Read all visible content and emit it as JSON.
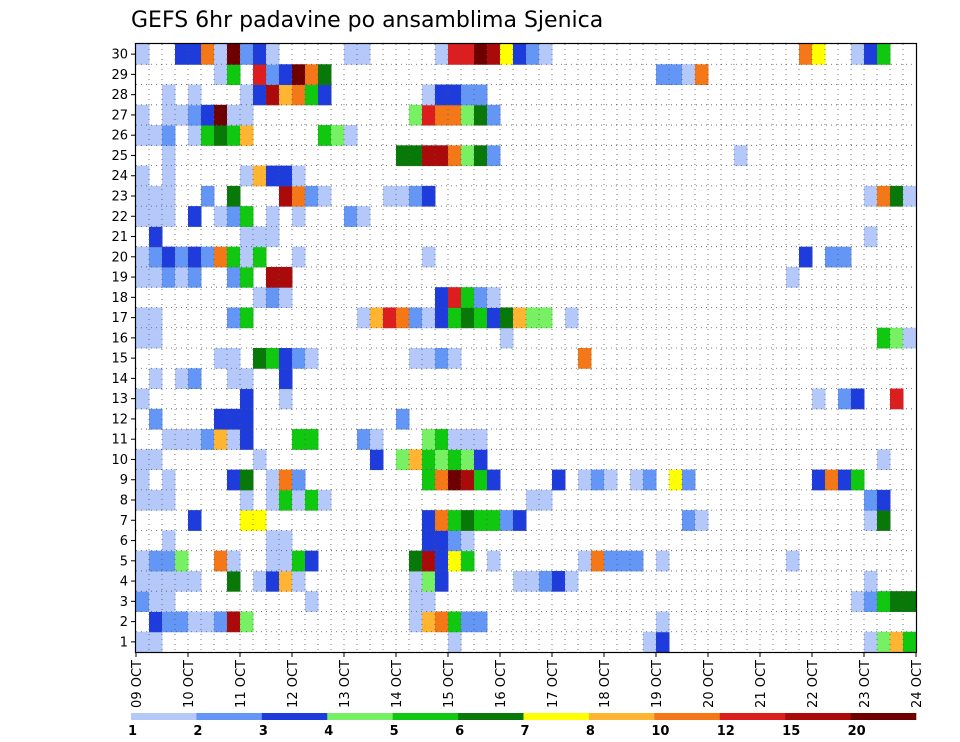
{
  "chart_data": {
    "type": "heatmap",
    "title": "GEFS 6hr padavine po ansamblima Sjenica",
    "xlabel": "",
    "ylabel": "",
    "x_ticks": [
      "09 OCT",
      "10 OCT",
      "11 OCT",
      "12 OCT",
      "13 OCT",
      "14 OCT",
      "15 OCT",
      "16 OCT",
      "17 OCT",
      "18 OCT",
      "19 OCT",
      "20 OCT",
      "21 OCT",
      "22 OCT",
      "23 OCT",
      "24 OCT"
    ],
    "y_ticks": [
      "1",
      "2",
      "3",
      "4",
      "5",
      "6",
      "7",
      "8",
      "9",
      "10",
      "11",
      "12",
      "13",
      "14",
      "15",
      "16",
      "17",
      "18",
      "19",
      "20",
      "21",
      "22",
      "23",
      "24",
      "25",
      "26",
      "27",
      "28",
      "29",
      "30"
    ],
    "x_range_days": [
      0,
      15
    ],
    "steps_per_day": 4,
    "members": 30,
    "grid": true,
    "colorbar": {
      "position": "bottom",
      "levels": [
        "1",
        "2",
        "3",
        "4",
        "5",
        "6",
        "7",
        "8",
        "10",
        "12",
        "15",
        "20"
      ],
      "colors": [
        "#b4c8fa",
        "#6496f5",
        "#1e3cdc",
        "#78f064",
        "#10c810",
        "#087808",
        "#ffff00",
        "#ffb432",
        "#f57818",
        "#dc1e1e",
        "#aa0a0a",
        "#6e0000"
      ]
    },
    "precip_by_member": {
      "30": [
        [
          0,
          1
        ],
        [
          3,
          3
        ],
        [
          4,
          3
        ],
        [
          5,
          10
        ],
        [
          6,
          1
        ],
        [
          7,
          20
        ],
        [
          8,
          2
        ],
        [
          9,
          3
        ],
        [
          10,
          1
        ],
        [
          16,
          1
        ],
        [
          17,
          1
        ],
        [
          23,
          1
        ],
        [
          24,
          12
        ],
        [
          25,
          12
        ],
        [
          26,
          20
        ],
        [
          27,
          15
        ],
        [
          28,
          7
        ],
        [
          29,
          3
        ],
        [
          30,
          2
        ],
        [
          31,
          1
        ],
        [
          51,
          10
        ],
        [
          52,
          7
        ],
        [
          55,
          1
        ],
        [
          56,
          3
        ],
        [
          57,
          5
        ]
      ],
      "29": [
        [
          6,
          1
        ],
        [
          7,
          5
        ],
        [
          9,
          12
        ],
        [
          10,
          2
        ],
        [
          11,
          3
        ],
        [
          12,
          20
        ],
        [
          13,
          10
        ],
        [
          14,
          6
        ],
        [
          40,
          2
        ],
        [
          41,
          2
        ],
        [
          42,
          1
        ],
        [
          43,
          10
        ]
      ],
      "28": [
        [
          2,
          1
        ],
        [
          4,
          1
        ],
        [
          8,
          1
        ],
        [
          9,
          3
        ],
        [
          10,
          15
        ],
        [
          11,
          8
        ],
        [
          12,
          10
        ],
        [
          13,
          5
        ],
        [
          14,
          3
        ],
        [
          22,
          1
        ],
        [
          23,
          3
        ],
        [
          24,
          3
        ],
        [
          25,
          2
        ],
        [
          26,
          2
        ]
      ],
      "27": [
        [
          0,
          1
        ],
        [
          2,
          1
        ],
        [
          3,
          1
        ],
        [
          4,
          2
        ],
        [
          5,
          3
        ],
        [
          6,
          20
        ],
        [
          7,
          1
        ],
        [
          8,
          1
        ],
        [
          21,
          4
        ],
        [
          22,
          12
        ],
        [
          23,
          10
        ],
        [
          24,
          10
        ],
        [
          25,
          4
        ],
        [
          26,
          6
        ],
        [
          27,
          2
        ]
      ],
      "26": [
        [
          0,
          1
        ],
        [
          1,
          1
        ],
        [
          2,
          2
        ],
        [
          4,
          1
        ],
        [
          5,
          5
        ],
        [
          6,
          6
        ],
        [
          7,
          5
        ],
        [
          8,
          8
        ],
        [
          14,
          5
        ],
        [
          15,
          4
        ],
        [
          16,
          1
        ]
      ],
      "25": [
        [
          2,
          1
        ],
        [
          20,
          6
        ],
        [
          21,
          6
        ],
        [
          22,
          15
        ],
        [
          23,
          15
        ],
        [
          24,
          10
        ],
        [
          25,
          4
        ],
        [
          26,
          6
        ],
        [
          27,
          2
        ],
        [
          46,
          1
        ]
      ],
      "24": [
        [
          0,
          1
        ],
        [
          2,
          1
        ],
        [
          8,
          1
        ],
        [
          9,
          8
        ],
        [
          10,
          3
        ],
        [
          11,
          3
        ],
        [
          12,
          1
        ]
      ],
      "23": [
        [
          0,
          1
        ],
        [
          1,
          1
        ],
        [
          2,
          1
        ],
        [
          5,
          2
        ],
        [
          7,
          6
        ],
        [
          11,
          15
        ],
        [
          12,
          10
        ],
        [
          13,
          2
        ],
        [
          14,
          1
        ],
        [
          19,
          1
        ],
        [
          20,
          1
        ],
        [
          21,
          2
        ],
        [
          22,
          3
        ],
        [
          56,
          1
        ],
        [
          57,
          10
        ],
        [
          58,
          6
        ],
        [
          59,
          1
        ]
      ],
      "22": [
        [
          0,
          1
        ],
        [
          1,
          1
        ],
        [
          2,
          1
        ],
        [
          4,
          3
        ],
        [
          6,
          1
        ],
        [
          7,
          2
        ],
        [
          8,
          5
        ],
        [
          10,
          1
        ],
        [
          12,
          1
        ],
        [
          16,
          2
        ],
        [
          17,
          1
        ]
      ],
      "21": [
        [
          1,
          3
        ],
        [
          8,
          1
        ],
        [
          9,
          1
        ],
        [
          10,
          1
        ],
        [
          56,
          1
        ]
      ],
      "20": [
        [
          0,
          1
        ],
        [
          1,
          2
        ],
        [
          2,
          3
        ],
        [
          3,
          2
        ],
        [
          4,
          3
        ],
        [
          5,
          2
        ],
        [
          6,
          10
        ],
        [
          7,
          5
        ],
        [
          8,
          1
        ],
        [
          9,
          5
        ],
        [
          12,
          1
        ],
        [
          22,
          1
        ],
        [
          51,
          3
        ],
        [
          53,
          2
        ],
        [
          54,
          2
        ]
      ],
      "19": [
        [
          0,
          1
        ],
        [
          1,
          1
        ],
        [
          2,
          2
        ],
        [
          3,
          1
        ],
        [
          4,
          2
        ],
        [
          7,
          2
        ],
        [
          8,
          5
        ],
        [
          10,
          15
        ],
        [
          11,
          15
        ],
        [
          50,
          1
        ]
      ],
      "18": [
        [
          9,
          1
        ],
        [
          10,
          2
        ],
        [
          11,
          1
        ],
        [
          23,
          3
        ],
        [
          24,
          12
        ],
        [
          25,
          5
        ],
        [
          26,
          2
        ],
        [
          27,
          1
        ]
      ],
      "17": [
        [
          0,
          1
        ],
        [
          1,
          1
        ],
        [
          7,
          2
        ],
        [
          8,
          5
        ],
        [
          17,
          1
        ],
        [
          18,
          8
        ],
        [
          19,
          12
        ],
        [
          20,
          10
        ],
        [
          21,
          2
        ],
        [
          22,
          1
        ],
        [
          23,
          3
        ],
        [
          24,
          5
        ],
        [
          25,
          6
        ],
        [
          26,
          5
        ],
        [
          27,
          3
        ],
        [
          28,
          6
        ],
        [
          29,
          8
        ],
        [
          30,
          4
        ],
        [
          31,
          4
        ],
        [
          33,
          1
        ]
      ],
      "16": [
        [
          0,
          1
        ],
        [
          1,
          1
        ],
        [
          28,
          1
        ],
        [
          57,
          5
        ],
        [
          58,
          4
        ],
        [
          59,
          1
        ]
      ],
      "15": [
        [
          6,
          1
        ],
        [
          7,
          1
        ],
        [
          9,
          6
        ],
        [
          10,
          5
        ],
        [
          11,
          3
        ],
        [
          12,
          2
        ],
        [
          13,
          1
        ],
        [
          21,
          1
        ],
        [
          22,
          1
        ],
        [
          23,
          2
        ],
        [
          24,
          1
        ],
        [
          34,
          10
        ]
      ],
      "14": [
        [
          1,
          1
        ],
        [
          3,
          1
        ],
        [
          4,
          2
        ],
        [
          7,
          1
        ],
        [
          8,
          1
        ],
        [
          11,
          3
        ]
      ],
      "13": [
        [
          0,
          1
        ],
        [
          8,
          3
        ],
        [
          11,
          1
        ],
        [
          52,
          1
        ],
        [
          54,
          2
        ],
        [
          55,
          3
        ],
        [
          58,
          12
        ]
      ],
      "12": [
        [
          1,
          2
        ],
        [
          6,
          3
        ],
        [
          7,
          3
        ],
        [
          8,
          3
        ],
        [
          20,
          2
        ]
      ],
      "11": [
        [
          2,
          1
        ],
        [
          3,
          1
        ],
        [
          4,
          1
        ],
        [
          5,
          2
        ],
        [
          6,
          8
        ],
        [
          7,
          1
        ],
        [
          8,
          3
        ],
        [
          12,
          5
        ],
        [
          13,
          5
        ],
        [
          17,
          2
        ],
        [
          18,
          1
        ],
        [
          22,
          4
        ],
        [
          23,
          5
        ],
        [
          24,
          1
        ],
        [
          25,
          1
        ],
        [
          26,
          1
        ]
      ],
      "10": [
        [
          0,
          1
        ],
        [
          1,
          1
        ],
        [
          9,
          1
        ],
        [
          18,
          3
        ],
        [
          20,
          4
        ],
        [
          21,
          8
        ],
        [
          22,
          5
        ],
        [
          23,
          4
        ],
        [
          24,
          5
        ],
        [
          25,
          4
        ],
        [
          26,
          3
        ],
        [
          57,
          1
        ]
      ],
      "9": [
        [
          0,
          1
        ],
        [
          2,
          1
        ],
        [
          7,
          3
        ],
        [
          8,
          6
        ],
        [
          10,
          1
        ],
        [
          11,
          10
        ],
        [
          12,
          2
        ],
        [
          22,
          5
        ],
        [
          23,
          10
        ],
        [
          24,
          20
        ],
        [
          25,
          15
        ],
        [
          26,
          5
        ],
        [
          27,
          3
        ],
        [
          32,
          3
        ],
        [
          34,
          1
        ],
        [
          35,
          2
        ],
        [
          36,
          1
        ],
        [
          38,
          1
        ],
        [
          39,
          2
        ],
        [
          41,
          7
        ],
        [
          42,
          2
        ],
        [
          52,
          3
        ],
        [
          53,
          10
        ],
        [
          54,
          3
        ],
        [
          55,
          5
        ]
      ],
      "8": [
        [
          0,
          1
        ],
        [
          1,
          1
        ],
        [
          2,
          1
        ],
        [
          8,
          1
        ],
        [
          10,
          1
        ],
        [
          11,
          5
        ],
        [
          12,
          1
        ],
        [
          13,
          5
        ],
        [
          14,
          1
        ],
        [
          30,
          1
        ],
        [
          31,
          1
        ],
        [
          56,
          2
        ],
        [
          57,
          3
        ]
      ],
      "7": [
        [
          4,
          3
        ],
        [
          8,
          7
        ],
        [
          9,
          7
        ],
        [
          22,
          3
        ],
        [
          23,
          10
        ],
        [
          24,
          5
        ],
        [
          25,
          6
        ],
        [
          26,
          5
        ],
        [
          27,
          5
        ],
        [
          28,
          2
        ],
        [
          29,
          3
        ],
        [
          42,
          2
        ],
        [
          43,
          1
        ],
        [
          56,
          1
        ],
        [
          57,
          6
        ]
      ],
      "6": [
        [
          2,
          1
        ],
        [
          10,
          1
        ],
        [
          11,
          1
        ],
        [
          22,
          3
        ],
        [
          23,
          3
        ],
        [
          24,
          2
        ],
        [
          25,
          1
        ]
      ],
      "5": [
        [
          0,
          1
        ],
        [
          1,
          2
        ],
        [
          2,
          2
        ],
        [
          3,
          4
        ],
        [
          6,
          10
        ],
        [
          7,
          1
        ],
        [
          10,
          1
        ],
        [
          11,
          1
        ],
        [
          12,
          5
        ],
        [
          13,
          3
        ],
        [
          21,
          6
        ],
        [
          22,
          15
        ],
        [
          23,
          3
        ],
        [
          24,
          7
        ],
        [
          25,
          5
        ],
        [
          27,
          1
        ],
        [
          34,
          1
        ],
        [
          35,
          10
        ],
        [
          36,
          2
        ],
        [
          37,
          2
        ],
        [
          38,
          2
        ],
        [
          40,
          1
        ],
        [
          50,
          1
        ]
      ],
      "4": [
        [
          0,
          1
        ],
        [
          1,
          1
        ],
        [
          2,
          1
        ],
        [
          3,
          1
        ],
        [
          4,
          1
        ],
        [
          7,
          6
        ],
        [
          9,
          1
        ],
        [
          10,
          3
        ],
        [
          11,
          8
        ],
        [
          12,
          1
        ],
        [
          21,
          1
        ],
        [
          22,
          4
        ],
        [
          23,
          3
        ],
        [
          29,
          1
        ],
        [
          30,
          1
        ],
        [
          31,
          2
        ],
        [
          32,
          3
        ],
        [
          33,
          1
        ],
        [
          56,
          1
        ]
      ],
      "3": [
        [
          0,
          2
        ],
        [
          1,
          1
        ],
        [
          2,
          1
        ],
        [
          13,
          1
        ],
        [
          21,
          1
        ],
        [
          22,
          1
        ],
        [
          55,
          1
        ],
        [
          56,
          2
        ],
        [
          57,
          5
        ],
        [
          58,
          6
        ],
        [
          59,
          6
        ]
      ],
      "2": [
        [
          1,
          3
        ],
        [
          2,
          2
        ],
        [
          3,
          2
        ],
        [
          4,
          1
        ],
        [
          5,
          1
        ],
        [
          6,
          2
        ],
        [
          7,
          15
        ],
        [
          8,
          4
        ],
        [
          21,
          1
        ],
        [
          22,
          8
        ],
        [
          23,
          10
        ],
        [
          24,
          5
        ],
        [
          25,
          2
        ],
        [
          26,
          2
        ],
        [
          40,
          1
        ]
      ],
      "1": [
        [
          0,
          1
        ],
        [
          1,
          1
        ],
        [
          24,
          1
        ],
        [
          39,
          1
        ],
        [
          40,
          3
        ],
        [
          56,
          1
        ],
        [
          57,
          4
        ],
        [
          58,
          8
        ],
        [
          59,
          5
        ]
      ]
    }
  }
}
